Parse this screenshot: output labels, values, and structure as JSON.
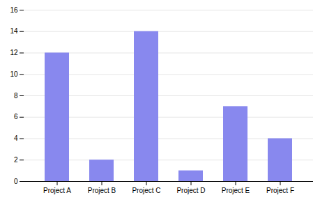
{
  "chart_data": {
    "type": "bar",
    "categories": [
      "Project A",
      "Project B",
      "Project C",
      "Project D",
      "Project E",
      "Project F"
    ],
    "values": [
      12,
      2,
      14,
      1,
      7,
      4
    ],
    "color": "#8888ee",
    "ylim": [
      0,
      16
    ],
    "yticks": [
      0,
      2,
      4,
      6,
      8,
      10,
      12,
      14,
      16
    ],
    "grid": true
  }
}
